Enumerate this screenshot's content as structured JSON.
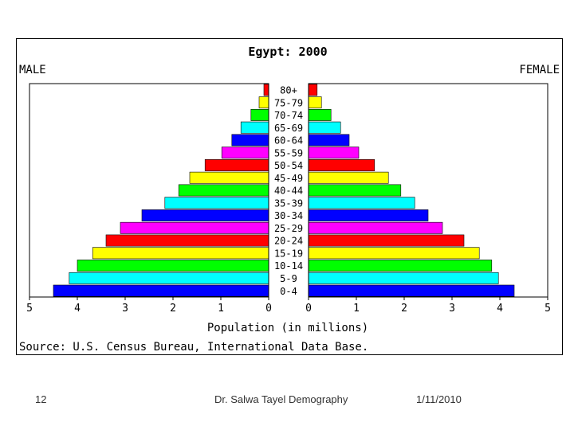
{
  "chart_data": {
    "type": "bar",
    "title": "Egypt: 2000",
    "left_label": "MALE",
    "right_label": "FEMALE",
    "xlabel": "Population (in millions)",
    "source": "Source: U.S. Census Bureau, International Data Base.",
    "xlim": [
      0,
      5
    ],
    "x_ticks": [
      "5",
      "4",
      "3",
      "2",
      "1",
      "0",
      "0",
      "1",
      "2",
      "3",
      "4",
      "5"
    ],
    "categories": [
      "0-4",
      "5-9",
      "10-14",
      "15-19",
      "20-24",
      "25-29",
      "30-34",
      "35-39",
      "40-44",
      "45-49",
      "50-54",
      "55-59",
      "60-64",
      "65-69",
      "70-74",
      "75-79",
      "80+"
    ],
    "bar_colors": [
      "#0000ff",
      "#00ffff",
      "#00ff00",
      "#ffff00",
      "#ff0000",
      "#ff00ff",
      "#0000ff",
      "#00ffff",
      "#00ff00",
      "#ffff00",
      "#ff0000",
      "#ff00ff",
      "#0000ff",
      "#00ffff",
      "#00ff00",
      "#ffff00",
      "#ff0000"
    ],
    "series": [
      {
        "name": "MALE",
        "values": [
          4.5,
          4.17,
          4.0,
          3.68,
          3.4,
          3.1,
          2.65,
          2.17,
          1.88,
          1.65,
          1.33,
          0.98,
          0.77,
          0.58,
          0.37,
          0.2,
          0.1
        ]
      },
      {
        "name": "FEMALE",
        "values": [
          4.3,
          3.97,
          3.83,
          3.57,
          3.25,
          2.8,
          2.5,
          2.22,
          1.93,
          1.67,
          1.38,
          1.05,
          0.85,
          0.67,
          0.47,
          0.27,
          0.18
        ]
      }
    ],
    "grid": false
  },
  "footer": {
    "page_number": "12",
    "author": "Dr. Salwa Tayel Demography",
    "date": "1/11/2010"
  }
}
